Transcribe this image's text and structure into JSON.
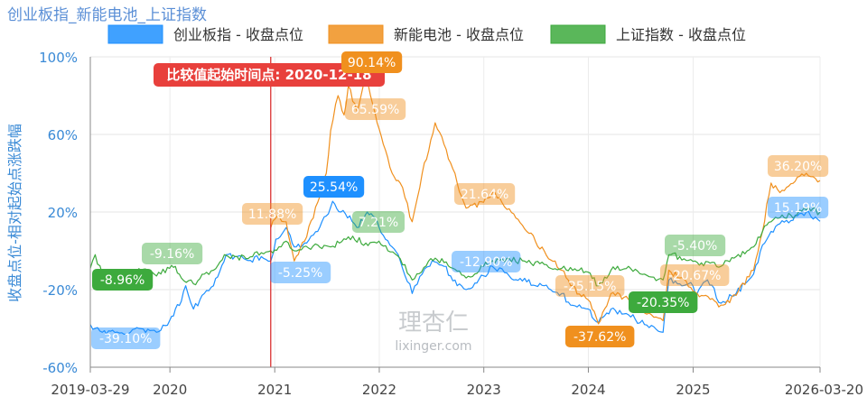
{
  "title": "创业板指_新能电池_上证指数",
  "colors": {
    "cyb": "#1e90ff",
    "xnd": "#f0901e",
    "sz": "#3daa3d",
    "marker": "#e8403c",
    "tick": "#3a8ad6"
  },
  "chart_data": {
    "type": "line",
    "title": "创业板指_新能电池_上证指数",
    "ylabel": "收盘点位-相对起始点涨跌幅",
    "xlabel": "",
    "ylim": [
      -60,
      100
    ],
    "y_ticks": [
      "100%",
      "60%",
      "20%",
      "-20%",
      "-60%"
    ],
    "y_tick_values": [
      100,
      60,
      20,
      -20,
      -60
    ],
    "x_range": [
      "2019-03-29",
      "2026-03-20"
    ],
    "x_ticks": [
      {
        "label": "2019-03-29",
        "date": "2019-03-29"
      },
      {
        "label": "2020",
        "date": "2020-01-01"
      },
      {
        "label": "2021",
        "date": "2021-01-01"
      },
      {
        "label": "2022",
        "date": "2022-01-01"
      },
      {
        "label": "2023",
        "date": "2023-01-01"
      },
      {
        "label": "2024",
        "date": "2024-01-01"
      },
      {
        "label": "2025",
        "date": "2025-01-01"
      },
      {
        "label": "2026-03-20",
        "date": "2026-03-20"
      }
    ],
    "grid": true,
    "legend_position": "top",
    "reference_line": {
      "date": "2020-12-18",
      "label": "比较值起始时间点: 2020-12-18"
    },
    "series": [
      {
        "key": "cyb",
        "name": "创业板指 - 收盘点位",
        "points": [
          [
            "2019-03-29",
            -38
          ],
          [
            "2019-04-15",
            -40
          ],
          [
            "2019-05-10",
            -42
          ],
          [
            "2019-06-15",
            -41
          ],
          [
            "2019-08-01",
            -43
          ],
          [
            "2019-09-15",
            -40
          ],
          [
            "2019-11-15",
            -42
          ],
          [
            "2019-12-31",
            -36
          ],
          [
            "2020-01-20",
            -30
          ],
          [
            "2020-02-10",
            -26
          ],
          [
            "2020-02-25",
            -18
          ],
          [
            "2020-03-23",
            -30
          ],
          [
            "2020-04-30",
            -22
          ],
          [
            "2020-06-01",
            -18
          ],
          [
            "2020-07-15",
            -2
          ],
          [
            "2020-08-15",
            -3
          ],
          [
            "2020-09-30",
            -5
          ],
          [
            "2020-11-15",
            -3
          ],
          [
            "2020-12-18",
            -5.25
          ],
          [
            "2021-01-05",
            6
          ],
          [
            "2021-02-10",
            12
          ],
          [
            "2021-03-10",
            2
          ],
          [
            "2021-04-15",
            4
          ],
          [
            "2021-05-31",
            10
          ],
          [
            "2021-06-30",
            18
          ],
          [
            "2021-07-22",
            25.54
          ],
          [
            "2021-08-20",
            20
          ],
          [
            "2021-09-20",
            18
          ],
          [
            "2021-10-15",
            12
          ],
          [
            "2021-11-20",
            20
          ],
          [
            "2021-12-10",
            18
          ],
          [
            "2022-01-15",
            8
          ],
          [
            "2022-02-15",
            2
          ],
          [
            "2022-03-15",
            -5
          ],
          [
            "2022-04-26",
            -22
          ],
          [
            "2022-05-31",
            -12
          ],
          [
            "2022-07-05",
            -5
          ],
          [
            "2022-08-15",
            -8
          ],
          [
            "2022-09-30",
            -18
          ],
          [
            "2022-10-31",
            -20
          ],
          [
            "2022-12-31",
            -12.9
          ],
          [
            "2023-01-31",
            -8
          ],
          [
            "2023-03-31",
            -13
          ],
          [
            "2023-05-31",
            -16
          ],
          [
            "2023-07-31",
            -18
          ],
          [
            "2023-09-30",
            -22
          ],
          [
            "2023-10-31",
            -28
          ],
          [
            "2023-12-31",
            -30
          ],
          [
            "2024-02-05",
            -37
          ],
          [
            "2024-03-20",
            -30
          ],
          [
            "2024-05-20",
            -33
          ],
          [
            "2024-07-15",
            -38
          ],
          [
            "2024-09-18",
            -42
          ],
          [
            "2024-10-08",
            -15
          ],
          [
            "2024-11-15",
            -17
          ],
          [
            "2024-12-31",
            -18
          ],
          [
            "2025-01-15",
            -22
          ],
          [
            "2025-02-20",
            -15
          ],
          [
            "2025-04-08",
            -27
          ],
          [
            "2025-05-31",
            -22
          ],
          [
            "2025-07-31",
            -12
          ],
          [
            "2025-08-31",
            3
          ],
          [
            "2025-09-30",
            10
          ],
          [
            "2025-10-31",
            14
          ],
          [
            "2025-12-31",
            18
          ],
          [
            "2026-01-31",
            20
          ],
          [
            "2026-03-20",
            15.19
          ]
        ]
      },
      {
        "key": "xnd",
        "name": "新能电池 - 收盘点位",
        "points": [
          [
            "2020-12-18",
            11.88
          ],
          [
            "2021-01-10",
            18
          ],
          [
            "2021-02-10",
            15
          ],
          [
            "2021-03-10",
            -5.25
          ],
          [
            "2021-04-15",
            5
          ],
          [
            "2021-05-31",
            25
          ],
          [
            "2021-06-30",
            40
          ],
          [
            "2021-07-15",
            62
          ],
          [
            "2021-08-10",
            80
          ],
          [
            "2021-08-31",
            70
          ],
          [
            "2021-09-15",
            85
          ],
          [
            "2021-10-15",
            72
          ],
          [
            "2021-11-15",
            90.14
          ],
          [
            "2021-12-10",
            75
          ],
          [
            "2022-01-15",
            55
          ],
          [
            "2022-02-15",
            40
          ],
          [
            "2022-03-15",
            35
          ],
          [
            "2022-04-26",
            15
          ],
          [
            "2022-05-31",
            40
          ],
          [
            "2022-07-15",
            66
          ],
          [
            "2022-08-15",
            55
          ],
          [
            "2022-09-30",
            35
          ],
          [
            "2022-10-31",
            22
          ],
          [
            "2022-12-31",
            25
          ],
          [
            "2023-01-31",
            30
          ],
          [
            "2023-03-31",
            21.64
          ],
          [
            "2023-05-31",
            10
          ],
          [
            "2023-07-31",
            0
          ],
          [
            "2023-09-30",
            -10
          ],
          [
            "2023-10-31",
            -18
          ],
          [
            "2023-12-31",
            -25.15
          ],
          [
            "2024-02-05",
            -37.62
          ],
          [
            "2024-03-20",
            -22
          ],
          [
            "2024-05-20",
            -25
          ],
          [
            "2024-07-15",
            -32
          ],
          [
            "2024-09-18",
            -36
          ],
          [
            "2024-10-08",
            -10
          ],
          [
            "2024-11-15",
            -14
          ],
          [
            "2024-12-31",
            -20.67
          ],
          [
            "2025-01-15",
            -22
          ],
          [
            "2025-04-08",
            -28
          ],
          [
            "2025-05-31",
            -23
          ],
          [
            "2025-07-31",
            -10
          ],
          [
            "2025-08-31",
            10
          ],
          [
            "2025-09-30",
            35
          ],
          [
            "2025-10-31",
            30
          ],
          [
            "2025-12-31",
            38
          ],
          [
            "2026-01-31",
            40
          ],
          [
            "2026-03-20",
            36.2
          ]
        ]
      },
      {
        "key": "sz",
        "name": "上证指数 - 收盘点位",
        "points": [
          [
            "2019-03-29",
            -8.96
          ],
          [
            "2019-04-15",
            -2
          ],
          [
            "2019-05-10",
            -12
          ],
          [
            "2019-06-15",
            -11
          ],
          [
            "2019-08-01",
            -12
          ],
          [
            "2019-09-15",
            -9.16
          ],
          [
            "2019-11-15",
            -13
          ],
          [
            "2019-12-31",
            -9
          ],
          [
            "2020-01-20",
            -8
          ],
          [
            "2020-02-10",
            -14
          ],
          [
            "2020-03-23",
            -17
          ],
          [
            "2020-04-30",
            -12
          ],
          [
            "2020-06-01",
            -10
          ],
          [
            "2020-07-09",
            -2
          ],
          [
            "2020-08-15",
            -3
          ],
          [
            "2020-09-30",
            -4
          ],
          [
            "2020-11-15",
            -1
          ],
          [
            "2020-12-18",
            0
          ],
          [
            "2021-01-15",
            2
          ],
          [
            "2021-02-10",
            5
          ],
          [
            "2021-03-10",
            0
          ],
          [
            "2021-05-31",
            3
          ],
          [
            "2021-07-15",
            2
          ],
          [
            "2021-09-15",
            7.21
          ],
          [
            "2021-11-15",
            4
          ],
          [
            "2021-12-31",
            5
          ],
          [
            "2022-01-31",
            0
          ],
          [
            "2022-03-15",
            -4
          ],
          [
            "2022-04-26",
            -15
          ],
          [
            "2022-06-30",
            -4
          ],
          [
            "2022-08-15",
            -6
          ],
          [
            "2022-10-31",
            -14
          ],
          [
            "2022-12-31",
            -8
          ],
          [
            "2023-01-31",
            -5
          ],
          [
            "2023-03-31",
            -4
          ],
          [
            "2023-05-31",
            -6
          ],
          [
            "2023-07-31",
            -7
          ],
          [
            "2023-09-30",
            -9
          ],
          [
            "2023-11-30",
            -10
          ],
          [
            "2023-12-31",
            -11
          ],
          [
            "2024-02-05",
            -18
          ],
          [
            "2024-03-20",
            -10
          ],
          [
            "2024-05-20",
            -8
          ],
          [
            "2024-07-15",
            -12
          ],
          [
            "2024-09-18",
            -15
          ],
          [
            "2024-10-08",
            -2
          ],
          [
            "2024-11-15",
            -3
          ],
          [
            "2024-12-31",
            -5.4
          ],
          [
            "2025-01-15",
            -6
          ],
          [
            "2025-04-08",
            -8
          ],
          [
            "2025-05-31",
            -3
          ],
          [
            "2025-07-31",
            2
          ],
          [
            "2025-08-31",
            10
          ],
          [
            "2025-09-30",
            15
          ],
          [
            "2025-10-31",
            17
          ],
          [
            "2025-12-31",
            19
          ],
          [
            "2026-01-31",
            21
          ],
          [
            "2026-03-20",
            20
          ]
        ]
      }
    ],
    "annotations": [
      {
        "text": "-39.10%",
        "series": "cyb",
        "date": "2019-06-10",
        "value": -39.1,
        "style": "light"
      },
      {
        "text": "-8.96%",
        "series": "sz",
        "date": "2019-05-10",
        "value": -8.96,
        "style": "solid"
      },
      {
        "text": "-9.16%",
        "series": "sz",
        "date": "2019-12-15",
        "value": -9.16,
        "style": "light"
      },
      {
        "text": "11.88%",
        "series": "xnd",
        "date": "2020-12-18",
        "value": 11.88,
        "style": "light"
      },
      {
        "text": "-5.25%",
        "series": "cyb",
        "date": "2021-03-20",
        "value": -5.25,
        "style": "light"
      },
      {
        "text": "25.54%",
        "series": "cyb",
        "date": "2021-07-22",
        "value": 25.54,
        "style": "solid"
      },
      {
        "text": "90.14%",
        "series": "xnd",
        "date": "2021-11-15",
        "value": 90.14,
        "style": "solid"
      },
      {
        "text": "65.59%",
        "series": "xnd",
        "date": "2021-12-15",
        "value": 65.59,
        "style": "light"
      },
      {
        "text": "7.21%",
        "series": "sz",
        "date": "2021-11-15",
        "value": 7.21,
        "style": "light"
      },
      {
        "text": "21.64%",
        "series": "xnd",
        "date": "2023-01-25",
        "value": 21.64,
        "style": "light"
      },
      {
        "text": "-12.90%",
        "series": "cyb",
        "date": "2022-12-25",
        "value": -12.9,
        "style": "light"
      },
      {
        "text": "-25.15%",
        "series": "xnd",
        "date": "2024-02-01",
        "value": -25.15,
        "style": "light"
      },
      {
        "text": "-37.62%",
        "series": "xnd",
        "date": "2024-02-01",
        "value": -37.62,
        "style": "solid"
      },
      {
        "text": "-20.35%",
        "series": "sz",
        "date": "2024-09-10",
        "value": -20.35,
        "style": "solid"
      },
      {
        "text": "-5.40%",
        "series": "sz",
        "date": "2025-01-05",
        "value": -5.4,
        "style": "light"
      },
      {
        "text": "-20.67%",
        "series": "xnd",
        "date": "2024-12-25",
        "value": -20.67,
        "style": "light"
      },
      {
        "text": "36.20%",
        "series": "xnd",
        "date": "2025-12-05",
        "value": 36.2,
        "style": "light"
      },
      {
        "text": "15.19%",
        "series": "cyb",
        "date": "2025-12-05",
        "value": 15.19,
        "style": "light"
      }
    ],
    "watermark": {
      "logo_text": "理杏仁",
      "site": "lixinger.com"
    }
  }
}
